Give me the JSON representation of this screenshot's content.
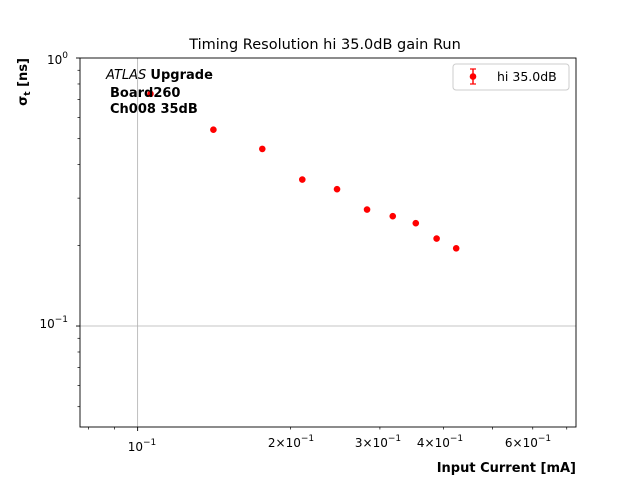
{
  "chart_data": {
    "type": "scatter",
    "title": "Timing Resolution hi 35.0dB gain Run",
    "xlabel": "Input Current [mA]",
    "ylabel": "σt [ns]",
    "xscale": "log",
    "yscale": "log",
    "xlim": [
      0.077,
      0.73
    ],
    "ylim": [
      0.042,
      1.0
    ],
    "grid": "major only (x at 10^-1, y at 10^-1)",
    "legend_position": "top-right",
    "x_tick_labels": [
      "10^-1",
      "2×10^-1",
      "3×10^-1",
      "4×10^-1",
      "6×10^-1"
    ],
    "y_tick_labels": [
      "10^-1",
      "10^0"
    ],
    "annotation": {
      "experiment_italic": "ATLAS",
      "experiment_bold": "Upgrade",
      "line2": "Board260",
      "line3": "Ch008 35dB"
    },
    "series": [
      {
        "name": "hi 35.0dB",
        "color": "#ff0000",
        "marker": "circle",
        "x": [
          0.106,
          0.141,
          0.176,
          0.211,
          0.247,
          0.283,
          0.318,
          0.353,
          0.388,
          0.424
        ],
        "y": [
          0.735,
          0.54,
          0.458,
          0.352,
          0.324,
          0.272,
          0.257,
          0.242,
          0.212,
          0.195
        ]
      }
    ]
  }
}
